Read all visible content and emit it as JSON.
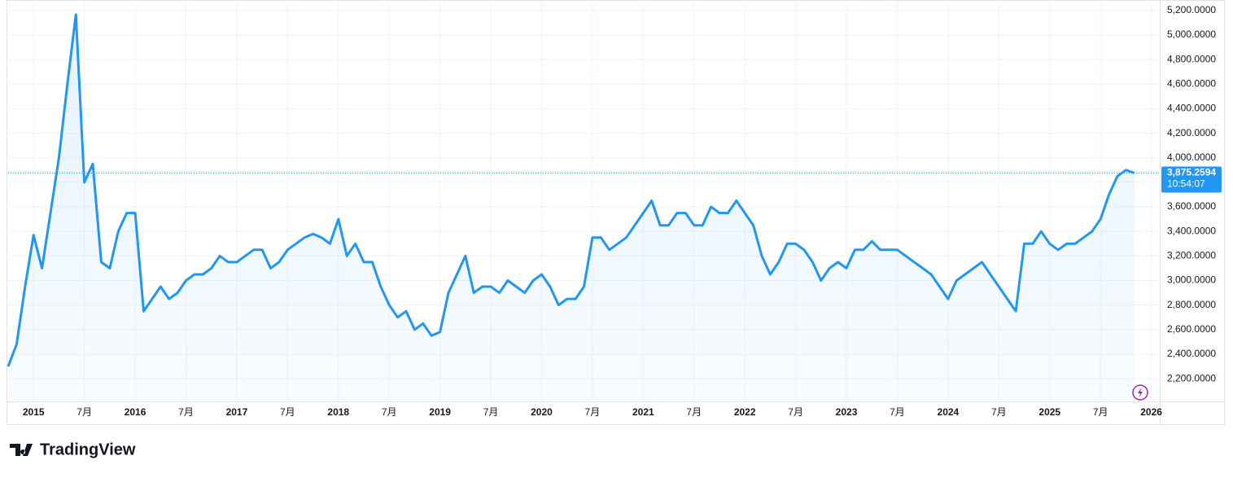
{
  "chart_data": {
    "type": "line",
    "x": [
      "2014-10",
      "2014-11",
      "2014-12",
      "2015-01",
      "2015-02",
      "2015-03",
      "2015-04",
      "2015-05",
      "2015-06",
      "2015-07",
      "2015-08",
      "2015-09",
      "2015-10",
      "2015-11",
      "2015-12",
      "2016-01",
      "2016-02",
      "2016-03",
      "2016-04",
      "2016-05",
      "2016-06",
      "2016-07",
      "2016-08",
      "2016-09",
      "2016-10",
      "2016-11",
      "2016-12",
      "2017-01",
      "2017-02",
      "2017-03",
      "2017-04",
      "2017-05",
      "2017-06",
      "2017-07",
      "2017-08",
      "2017-09",
      "2017-10",
      "2017-11",
      "2017-12",
      "2018-01",
      "2018-02",
      "2018-03",
      "2018-04",
      "2018-05",
      "2018-06",
      "2018-07",
      "2018-08",
      "2018-09",
      "2018-10",
      "2018-11",
      "2018-12",
      "2019-01",
      "2019-02",
      "2019-03",
      "2019-04",
      "2019-05",
      "2019-06",
      "2019-07",
      "2019-08",
      "2019-09",
      "2019-10",
      "2019-11",
      "2019-12",
      "2020-01",
      "2020-02",
      "2020-03",
      "2020-04",
      "2020-05",
      "2020-06",
      "2020-07",
      "2020-08",
      "2020-09",
      "2020-10",
      "2020-11",
      "2020-12",
      "2021-01",
      "2021-02",
      "2021-03",
      "2021-04",
      "2021-05",
      "2021-06",
      "2021-07",
      "2021-08",
      "2021-09",
      "2021-10",
      "2021-11",
      "2021-12",
      "2022-01",
      "2022-02",
      "2022-03",
      "2022-04",
      "2022-05",
      "2022-06",
      "2022-07",
      "2022-08",
      "2022-09",
      "2022-10",
      "2022-11",
      "2022-12",
      "2023-01",
      "2023-02",
      "2023-03",
      "2023-04",
      "2023-05",
      "2023-06",
      "2023-07",
      "2023-08",
      "2023-09",
      "2023-10",
      "2023-11",
      "2023-12",
      "2024-01",
      "2024-02",
      "2024-03",
      "2024-04",
      "2024-05",
      "2024-06",
      "2024-07",
      "2024-08",
      "2024-09",
      "2024-10",
      "2024-11",
      "2024-12",
      "2025-01",
      "2025-02",
      "2025-03",
      "2025-04",
      "2025-05",
      "2025-06",
      "2025-07",
      "2025-08",
      "2025-09",
      "2025-10",
      "2025-11"
    ],
    "values": [
      2300,
      2480,
      2950,
      3370,
      3100,
      3550,
      4000,
      4600,
      5166,
      3800,
      3950,
      3150,
      3100,
      3400,
      3550,
      3550,
      2750,
      2850,
      2950,
      2850,
      2900,
      3000,
      3050,
      3050,
      3100,
      3200,
      3150,
      3150,
      3200,
      3250,
      3250,
      3100,
      3150,
      3250,
      3300,
      3350,
      3380,
      3350,
      3300,
      3500,
      3200,
      3300,
      3150,
      3150,
      2950,
      2800,
      2700,
      2750,
      2600,
      2650,
      2550,
      2580,
      2900,
      3050,
      3200,
      2900,
      2950,
      2950,
      2900,
      3000,
      2950,
      2900,
      3000,
      3050,
      2950,
      2800,
      2850,
      2850,
      2950,
      3350,
      3350,
      3250,
      3300,
      3350,
      3450,
      3550,
      3650,
      3450,
      3450,
      3550,
      3550,
      3450,
      3450,
      3600,
      3550,
      3550,
      3650,
      3550,
      3450,
      3200,
      3050,
      3150,
      3300,
      3300,
      3250,
      3150,
      3000,
      3100,
      3150,
      3100,
      3250,
      3250,
      3320,
      3250,
      3250,
      3250,
      3200,
      3150,
      3100,
      3050,
      2950,
      2850,
      3000,
      3050,
      3100,
      3150,
      3050,
      2950,
      2850,
      2750,
      3300,
      3300,
      3400,
      3300,
      3250,
      3300,
      3300,
      3350,
      3400,
      3500,
      3700,
      3850,
      3900,
      3875.2594
    ],
    "color": "#2196f3",
    "xlim": [
      "2014-10",
      "2026-02"
    ],
    "ylim": [
      2015,
      5285
    ],
    "xticks": [
      {
        "value": "2015-01",
        "label": "2015"
      },
      {
        "value": "2015-07",
        "label": "7月"
      },
      {
        "value": "2016-01",
        "label": "2016"
      },
      {
        "value": "2016-07",
        "label": "7月"
      },
      {
        "value": "2017-01",
        "label": "2017"
      },
      {
        "value": "2017-07",
        "label": "7月"
      },
      {
        "value": "2018-01",
        "label": "2018"
      },
      {
        "value": "2018-07",
        "label": "7月"
      },
      {
        "value": "2019-01",
        "label": "2019"
      },
      {
        "value": "2019-07",
        "label": "7月"
      },
      {
        "value": "2020-01",
        "label": "2020"
      },
      {
        "value": "2020-07",
        "label": "7月"
      },
      {
        "value": "2021-01",
        "label": "2021"
      },
      {
        "value": "2021-07",
        "label": "7月"
      },
      {
        "value": "2022-01",
        "label": "2022"
      },
      {
        "value": "2022-07",
        "label": "7月"
      },
      {
        "value": "2023-01",
        "label": "2023"
      },
      {
        "value": "2023-07",
        "label": "7月"
      },
      {
        "value": "2024-01",
        "label": "2024"
      },
      {
        "value": "2024-07",
        "label": "7月"
      },
      {
        "value": "2025-01",
        "label": "2025"
      },
      {
        "value": "2025-07",
        "label": "7月"
      },
      {
        "value": "2026-01",
        "label": "2026"
      }
    ],
    "yticks": [
      {
        "value": 2200,
        "label": "2,200.0000"
      },
      {
        "value": 2400,
        "label": "2,400.0000"
      },
      {
        "value": 2600,
        "label": "2,600.0000"
      },
      {
        "value": 2800,
        "label": "2,800.0000"
      },
      {
        "value": 3000,
        "label": "3,000.0000"
      },
      {
        "value": 3200,
        "label": "3,200.0000"
      },
      {
        "value": 3400,
        "label": "3,400.0000"
      },
      {
        "value": 3600,
        "label": "3,600.0000"
      },
      {
        "value": 3800,
        "label": "3,800.0000"
      },
      {
        "value": 4000,
        "label": "4,000.0000"
      },
      {
        "value": 4200,
        "label": "4,200.0000"
      },
      {
        "value": 4400,
        "label": "4,400.0000"
      },
      {
        "value": 4600,
        "label": "4,600.0000"
      },
      {
        "value": 4800,
        "label": "4,800.0000"
      },
      {
        "value": 5000,
        "label": "5,000.0000"
      },
      {
        "value": 5200,
        "label": "5,200.0000"
      }
    ],
    "grid": true,
    "last_price": {
      "value": 3875.2594,
      "label": "3,875.2594"
    },
    "countdown": "10:54:07"
  },
  "brand": "TradingView"
}
